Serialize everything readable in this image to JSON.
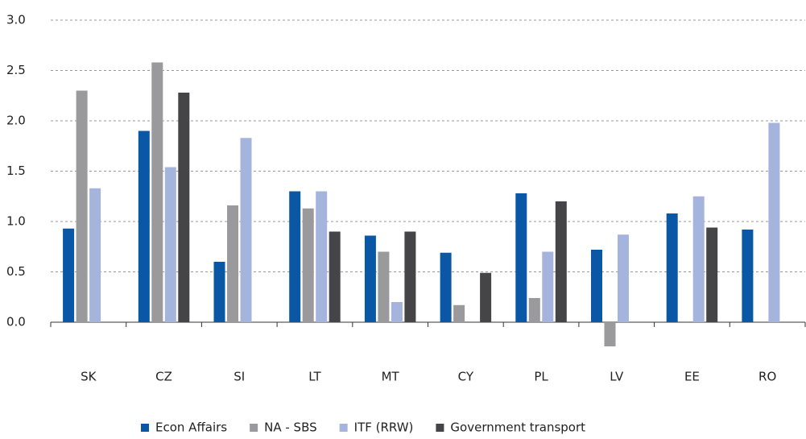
{
  "chart_data": {
    "type": "bar",
    "categories": [
      "SK",
      "CZ",
      "SI",
      "LT",
      "MT",
      "CY",
      "PL",
      "LV",
      "EE",
      "RO"
    ],
    "series": [
      {
        "name": "Econ Affairs",
        "color": "#0a57a6",
        "values": [
          0.93,
          1.9,
          0.6,
          1.3,
          0.86,
          0.69,
          1.28,
          0.72,
          1.08,
          0.92
        ]
      },
      {
        "name": "NA - SBS",
        "color": "#9a9a9c",
        "values": [
          2.3,
          2.58,
          1.16,
          1.13,
          0.7,
          0.17,
          0.24,
          -0.24,
          null,
          null
        ]
      },
      {
        "name": "ITF (RRW)",
        "color": "#a5b4dd",
        "values": [
          1.33,
          1.54,
          1.83,
          1.3,
          0.2,
          null,
          0.7,
          0.87,
          1.25,
          1.98
        ]
      },
      {
        "name": "Government transport",
        "color": "#454548",
        "values": [
          null,
          2.28,
          null,
          0.9,
          0.9,
          0.49,
          1.2,
          null,
          0.94,
          null
        ]
      }
    ],
    "ylim": [
      -0.5,
      3.0
    ],
    "yticks": [
      {
        "value": 0,
        "label": "0.0"
      },
      0.5,
      {
        "value": 1,
        "label": "1.0"
      },
      1.5,
      {
        "value": 2,
        "label": "2.0"
      },
      2.5,
      {
        "value": 3,
        "label": "3.0"
      }
    ],
    "grid": true,
    "legend": "bottom"
  }
}
